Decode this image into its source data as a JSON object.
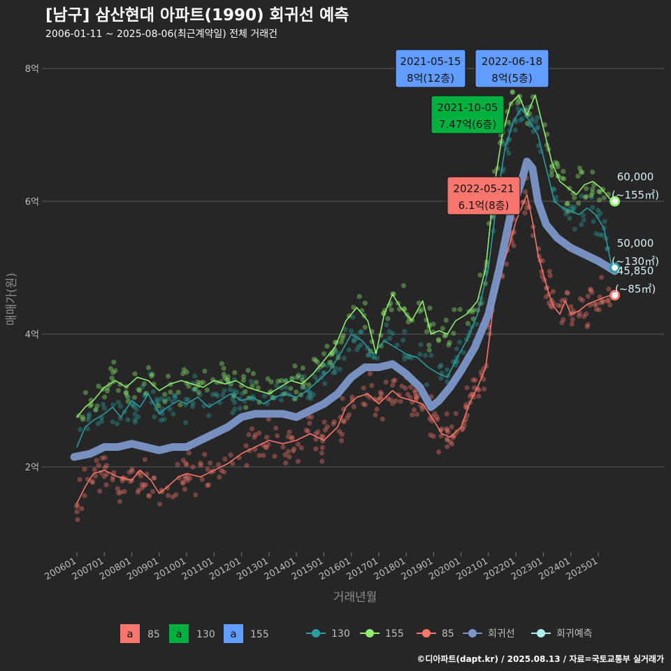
{
  "header": {
    "title": "[남구] 삼산현대 아파트(1990) 회귀선 예측",
    "subtitle": "2006-01-11 ~ 2025-08-06(최근계약일) 전체 거래건"
  },
  "credit": "©디아파트(dapt.kr) / 2025.08.13 / 자료=국토교통부 실거래가",
  "colors": {
    "s85": "#f8766d",
    "s130": "#2a9d9f",
    "s155": "#90ee70",
    "regression": "#7b96c8",
    "forecast": "#aef0f0",
    "box85": "#f8766d",
    "box130": "#00b140",
    "box155": "#619cff"
  },
  "chart_data": {
    "type": "line",
    "xlabel": "거래년월",
    "ylabel": "매매가(원)",
    "ylim": [
      0.7,
      8.5
    ],
    "y_unit": "억",
    "y_ticks": [
      {
        "value": 2,
        "label": "2억"
      },
      {
        "value": 4,
        "label": "4억"
      },
      {
        "value": 6,
        "label": "6억"
      },
      {
        "value": 8,
        "label": "8억"
      }
    ],
    "x_ticks": [
      "200601",
      "200701",
      "200801",
      "200901",
      "201001",
      "201101",
      "201201",
      "201301",
      "201401",
      "201501",
      "201601",
      "201701",
      "201801",
      "201901",
      "202001",
      "202101",
      "202201",
      "202301",
      "202401",
      "202501"
    ],
    "x_range": [
      2005.6,
      2026.0
    ],
    "grid": true,
    "series": [
      {
        "name": "85",
        "key": "s85",
        "points": [
          [
            2006.0,
            1.45
          ],
          [
            2006.3,
            1.7
          ],
          [
            2006.6,
            1.9
          ],
          [
            2007.0,
            1.95
          ],
          [
            2007.5,
            1.85
          ],
          [
            2008.0,
            1.8
          ],
          [
            2008.3,
            1.95
          ],
          [
            2008.7,
            1.8
          ],
          [
            2009.0,
            1.6
          ],
          [
            2009.3,
            1.7
          ],
          [
            2009.7,
            1.85
          ],
          [
            2010.0,
            1.9
          ],
          [
            2010.5,
            1.85
          ],
          [
            2011.0,
            1.95
          ],
          [
            2011.5,
            2.05
          ],
          [
            2012.0,
            2.2
          ],
          [
            2012.5,
            2.3
          ],
          [
            2013.0,
            2.4
          ],
          [
            2013.5,
            2.35
          ],
          [
            2014.0,
            2.4
          ],
          [
            2014.5,
            2.5
          ],
          [
            2015.0,
            2.4
          ],
          [
            2015.5,
            2.6
          ],
          [
            2015.8,
            2.9
          ],
          [
            2016.2,
            3.05
          ],
          [
            2016.6,
            3.1
          ],
          [
            2017.0,
            2.95
          ],
          [
            2017.5,
            3.15
          ],
          [
            2017.8,
            3.05
          ],
          [
            2018.2,
            3.0
          ],
          [
            2018.6,
            2.95
          ],
          [
            2019.0,
            2.7
          ],
          [
            2019.3,
            2.5
          ],
          [
            2019.6,
            2.45
          ],
          [
            2020.0,
            2.6
          ],
          [
            2020.3,
            2.95
          ],
          [
            2020.6,
            3.2
          ],
          [
            2020.9,
            3.5
          ],
          [
            2021.2,
            4.5
          ],
          [
            2021.5,
            5.0
          ],
          [
            2021.8,
            5.4
          ],
          [
            2022.0,
            5.7
          ],
          [
            2022.2,
            5.9
          ],
          [
            2022.4,
            6.1
          ],
          [
            2022.6,
            5.7
          ],
          [
            2022.8,
            5.2
          ],
          [
            2023.0,
            4.9
          ],
          [
            2023.2,
            4.6
          ],
          [
            2023.4,
            4.4
          ],
          [
            2023.6,
            4.3
          ],
          [
            2023.8,
            4.5
          ],
          [
            2024.0,
            4.3
          ],
          [
            2024.3,
            4.35
          ],
          [
            2024.6,
            4.45
          ],
          [
            2024.9,
            4.5
          ],
          [
            2025.2,
            4.55
          ],
          [
            2025.5,
            4.59
          ]
        ]
      },
      {
        "name": "130",
        "key": "s130",
        "points": [
          [
            2006.0,
            2.3
          ],
          [
            2006.3,
            2.6
          ],
          [
            2006.6,
            2.7
          ],
          [
            2007.0,
            2.8
          ],
          [
            2007.3,
            2.9
          ],
          [
            2007.6,
            2.75
          ],
          [
            2008.0,
            3.0
          ],
          [
            2008.3,
            2.9
          ],
          [
            2008.6,
            3.1
          ],
          [
            2009.0,
            2.8
          ],
          [
            2009.3,
            2.9
          ],
          [
            2009.7,
            3.0
          ],
          [
            2010.0,
            2.95
          ],
          [
            2010.4,
            3.05
          ],
          [
            2010.8,
            2.9
          ],
          [
            2011.2,
            3.0
          ],
          [
            2011.6,
            3.1
          ],
          [
            2012.0,
            3.0
          ],
          [
            2012.4,
            3.05
          ],
          [
            2012.8,
            2.95
          ],
          [
            2013.2,
            3.05
          ],
          [
            2013.6,
            3.1
          ],
          [
            2014.0,
            3.05
          ],
          [
            2014.4,
            3.15
          ],
          [
            2014.8,
            3.3
          ],
          [
            2015.2,
            3.45
          ],
          [
            2015.6,
            3.7
          ],
          [
            2016.0,
            4.0
          ],
          [
            2016.4,
            3.9
          ],
          [
            2016.8,
            3.7
          ],
          [
            2017.2,
            3.9
          ],
          [
            2017.6,
            3.8
          ],
          [
            2018.0,
            3.7
          ],
          [
            2018.4,
            3.65
          ],
          [
            2018.8,
            3.5
          ],
          [
            2019.2,
            3.4
          ],
          [
            2019.5,
            3.35
          ],
          [
            2019.8,
            3.6
          ],
          [
            2020.2,
            3.9
          ],
          [
            2020.6,
            4.3
          ],
          [
            2021.0,
            5.0
          ],
          [
            2021.3,
            6.0
          ],
          [
            2021.6,
            6.8
          ],
          [
            2021.9,
            7.2
          ],
          [
            2022.2,
            7.4
          ],
          [
            2022.5,
            7.2
          ],
          [
            2022.8,
            7.0
          ],
          [
            2023.1,
            6.5
          ],
          [
            2023.4,
            6.0
          ],
          [
            2023.7,
            5.9
          ],
          [
            2024.0,
            5.85
          ],
          [
            2024.3,
            5.8
          ],
          [
            2024.6,
            5.9
          ],
          [
            2024.9,
            5.8
          ],
          [
            2025.2,
            5.6
          ],
          [
            2025.5,
            5.0
          ]
        ]
      },
      {
        "name": "155",
        "key": "s155",
        "points": [
          [
            2006.0,
            2.75
          ],
          [
            2006.3,
            2.9
          ],
          [
            2006.6,
            3.0
          ],
          [
            2007.0,
            3.2
          ],
          [
            2007.4,
            3.3
          ],
          [
            2007.8,
            3.2
          ],
          [
            2008.2,
            3.35
          ],
          [
            2008.6,
            3.3
          ],
          [
            2009.0,
            3.15
          ],
          [
            2009.4,
            3.25
          ],
          [
            2009.8,
            3.3
          ],
          [
            2010.2,
            3.25
          ],
          [
            2010.6,
            3.2
          ],
          [
            2011.0,
            3.3
          ],
          [
            2011.4,
            3.25
          ],
          [
            2011.8,
            3.3
          ],
          [
            2012.2,
            3.2
          ],
          [
            2012.6,
            3.15
          ],
          [
            2013.0,
            3.1
          ],
          [
            2013.4,
            3.2
          ],
          [
            2013.8,
            3.3
          ],
          [
            2014.2,
            3.25
          ],
          [
            2014.6,
            3.4
          ],
          [
            2015.0,
            3.6
          ],
          [
            2015.4,
            3.8
          ],
          [
            2015.8,
            4.2
          ],
          [
            2016.2,
            4.4
          ],
          [
            2016.6,
            4.2
          ],
          [
            2016.9,
            3.7
          ],
          [
            2017.2,
            4.3
          ],
          [
            2017.5,
            4.6
          ],
          [
            2017.8,
            4.4
          ],
          [
            2018.2,
            4.2
          ],
          [
            2018.6,
            4.5
          ],
          [
            2018.9,
            4.0
          ],
          [
            2019.2,
            4.05
          ],
          [
            2019.5,
            4.0
          ],
          [
            2019.8,
            4.2
          ],
          [
            2020.2,
            4.3
          ],
          [
            2020.6,
            4.5
          ],
          [
            2020.9,
            5.0
          ],
          [
            2021.2,
            6.2
          ],
          [
            2021.5,
            7.0
          ],
          [
            2021.8,
            7.47
          ],
          [
            2022.1,
            7.6
          ],
          [
            2022.4,
            7.3
          ],
          [
            2022.7,
            7.6
          ],
          [
            2023.0,
            7.1
          ],
          [
            2023.3,
            6.6
          ],
          [
            2023.6,
            6.3
          ],
          [
            2023.9,
            6.2
          ],
          [
            2024.2,
            6.1
          ],
          [
            2024.5,
            6.25
          ],
          [
            2024.8,
            6.3
          ],
          [
            2025.1,
            6.2
          ],
          [
            2025.5,
            6.0
          ]
        ]
      },
      {
        "name": "회귀선",
        "key": "regression",
        "points": [
          [
            2005.9,
            2.15
          ],
          [
            2006.5,
            2.2
          ],
          [
            2007.0,
            2.3
          ],
          [
            2007.5,
            2.3
          ],
          [
            2008.0,
            2.35
          ],
          [
            2008.5,
            2.3
          ],
          [
            2009.0,
            2.25
          ],
          [
            2009.5,
            2.3
          ],
          [
            2010.0,
            2.3
          ],
          [
            2010.5,
            2.4
          ],
          [
            2011.0,
            2.5
          ],
          [
            2011.5,
            2.6
          ],
          [
            2012.0,
            2.75
          ],
          [
            2012.5,
            2.8
          ],
          [
            2013.0,
            2.8
          ],
          [
            2013.5,
            2.8
          ],
          [
            2014.0,
            2.75
          ],
          [
            2014.5,
            2.85
          ],
          [
            2015.0,
            2.95
          ],
          [
            2015.5,
            3.1
          ],
          [
            2016.0,
            3.35
          ],
          [
            2016.5,
            3.5
          ],
          [
            2017.0,
            3.5
          ],
          [
            2017.5,
            3.55
          ],
          [
            2018.0,
            3.4
          ],
          [
            2018.5,
            3.2
          ],
          [
            2018.9,
            2.9
          ],
          [
            2019.2,
            3.0
          ],
          [
            2019.6,
            3.2
          ],
          [
            2020.0,
            3.45
          ],
          [
            2020.5,
            3.8
          ],
          [
            2021.0,
            4.3
          ],
          [
            2021.4,
            5.0
          ],
          [
            2021.8,
            5.8
          ],
          [
            2022.2,
            6.3
          ],
          [
            2022.4,
            6.6
          ],
          [
            2022.6,
            6.5
          ],
          [
            2022.8,
            6.0
          ],
          [
            2023.1,
            5.65
          ],
          [
            2023.5,
            5.45
          ],
          [
            2024.0,
            5.3
          ],
          [
            2024.5,
            5.2
          ],
          [
            2025.0,
            5.1
          ],
          [
            2025.4,
            5.0
          ],
          [
            2025.6,
            4.95
          ]
        ]
      }
    ],
    "callouts": [
      {
        "date": "2021-05-15",
        "label": "8억(12층)",
        "group": "155"
      },
      {
        "date": "2022-06-18",
        "label": "8억(5층)",
        "group": "155"
      },
      {
        "date": "2021-10-05",
        "label": "7.47억(6층)",
        "group": "130"
      },
      {
        "date": "2022-05-21",
        "label": "6.1억(8층)",
        "group": "85"
      }
    ],
    "end_labels": [
      {
        "value_text": "60,000",
        "area_text": "(~155㎡)",
        "x": 2025.6,
        "y": 6.0,
        "key": "s155"
      },
      {
        "value_text": "50,000",
        "area_text": "(~130㎡)",
        "x": 2025.6,
        "y": 5.0,
        "key": "s130"
      },
      {
        "value_text": "45,850",
        "area_text": "(~85㎡)",
        "x": 2025.6,
        "y": 4.585,
        "key": "s85"
      }
    ],
    "legend": {
      "position": "bottom",
      "boxes": [
        {
          "glyph": "a",
          "label": "85",
          "key": "box85"
        },
        {
          "glyph": "a",
          "label": "130",
          "key": "box130"
        },
        {
          "glyph": "a",
          "label": "155",
          "key": "box155"
        }
      ],
      "lines": [
        {
          "label": "130",
          "key": "s130"
        },
        {
          "label": "155",
          "key": "s155"
        },
        {
          "label": "85",
          "key": "s85"
        },
        {
          "label": "회귀선",
          "key": "regression"
        },
        {
          "label": "회귀예측",
          "key": "forecast"
        }
      ]
    }
  }
}
